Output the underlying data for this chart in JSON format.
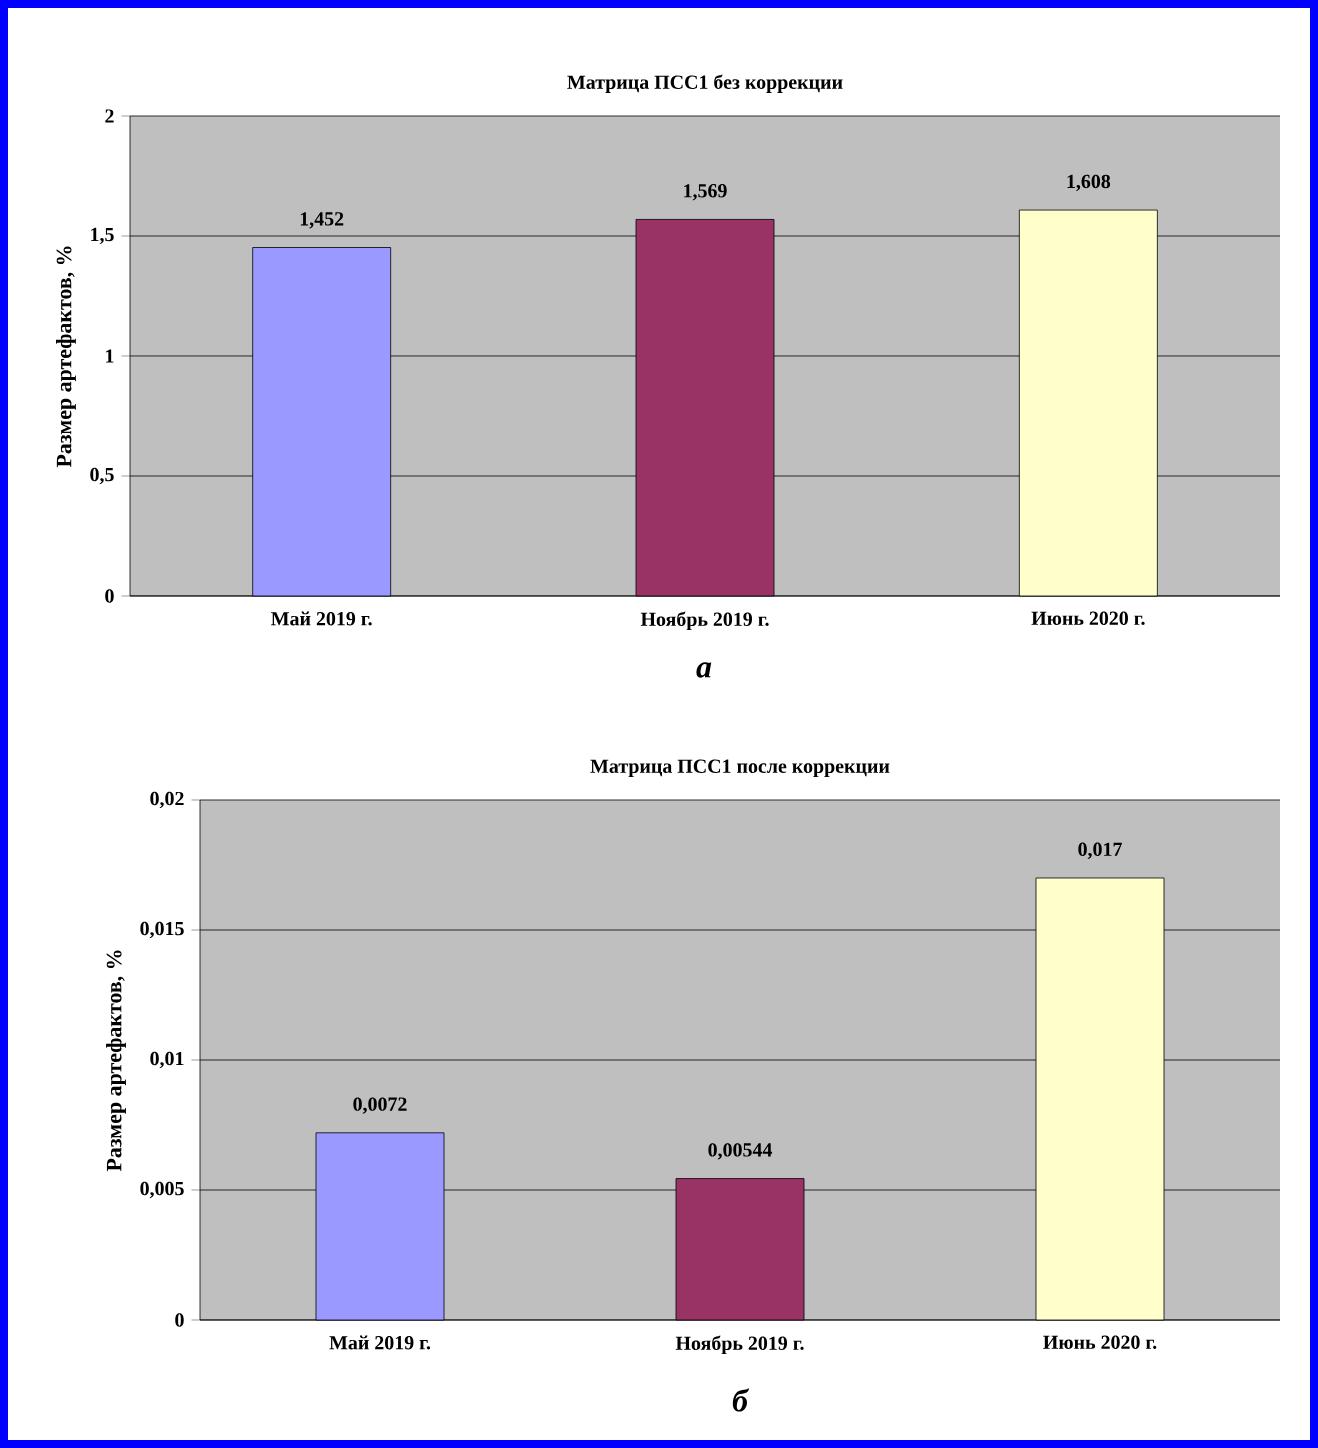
{
  "chart_data": [
    {
      "type": "bar",
      "title": "Матрица ПСС1 без коррекции",
      "ylabel": "Размер артефактов, %",
      "categories": [
        "Май 2019 г.",
        "Ноябрь 2019 г.",
        "Июнь 2020 г."
      ],
      "values": [
        1.452,
        1.569,
        1.608
      ],
      "colors": [
        "#9999ff",
        "#993366",
        "#ffffcc"
      ],
      "value_labels": [
        "1,452",
        "1,569",
        "1,608"
      ],
      "ylim": [
        0,
        2
      ],
      "yticks": [
        0,
        {
          "value": 0.5,
          "label": "0,5"
        },
        1,
        {
          "value": 1.5,
          "label": "1,5"
        },
        2
      ],
      "grid": "y",
      "annotations": [
        "а"
      ]
    },
    {
      "type": "bar",
      "title": "Матрица ПСС1 после коррекции",
      "ylabel": "Размер артефактов, %",
      "categories": [
        "Май 2019 г.",
        "Ноябрь 2019 г.",
        "Июнь 2020 г."
      ],
      "values": [
        0.0072,
        0.00544,
        0.017
      ],
      "colors": [
        "#9999ff",
        "#993366",
        "#ffffcc"
      ],
      "value_labels": [
        "0,0072",
        "0,00544",
        "0,017"
      ],
      "ylim": [
        0,
        0.02
      ],
      "yticks": [
        0,
        {
          "value": 0.005,
          "label": "0,005"
        },
        {
          "value": 0.01,
          "label": "0,01"
        },
        {
          "value": 0.015,
          "label": "0,015"
        },
        {
          "value": 0.02,
          "label": "0,02"
        }
      ],
      "grid": "y",
      "annotations": [
        "б"
      ]
    }
  ]
}
